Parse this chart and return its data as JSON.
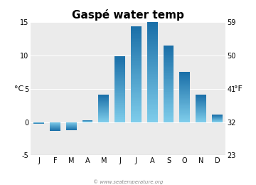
{
  "title": "Gaspé water temp",
  "months": [
    "J",
    "F",
    "M",
    "A",
    "M",
    "J",
    "J",
    "A",
    "S",
    "O",
    "N",
    "D"
  ],
  "values_c": [
    -0.3,
    -1.3,
    -1.2,
    0.3,
    4.1,
    9.9,
    14.4,
    15.0,
    11.5,
    7.5,
    4.1,
    1.1
  ],
  "ylim_c": [
    -5,
    15
  ],
  "yticks_c": [
    -5,
    0,
    5,
    10,
    15
  ],
  "yticks_f": [
    23,
    32,
    41,
    50,
    59
  ],
  "ylabel_left": "°C",
  "ylabel_right": "°F",
  "bg_color": "#ebebeb",
  "bar_light": "#7eccea",
  "bar_dark": "#1a6fa8",
  "watermark": "© www.seatemperature.org",
  "title_fontsize": 11,
  "tick_fontsize": 7,
  "label_fontsize": 8,
  "bar_width": 0.65
}
